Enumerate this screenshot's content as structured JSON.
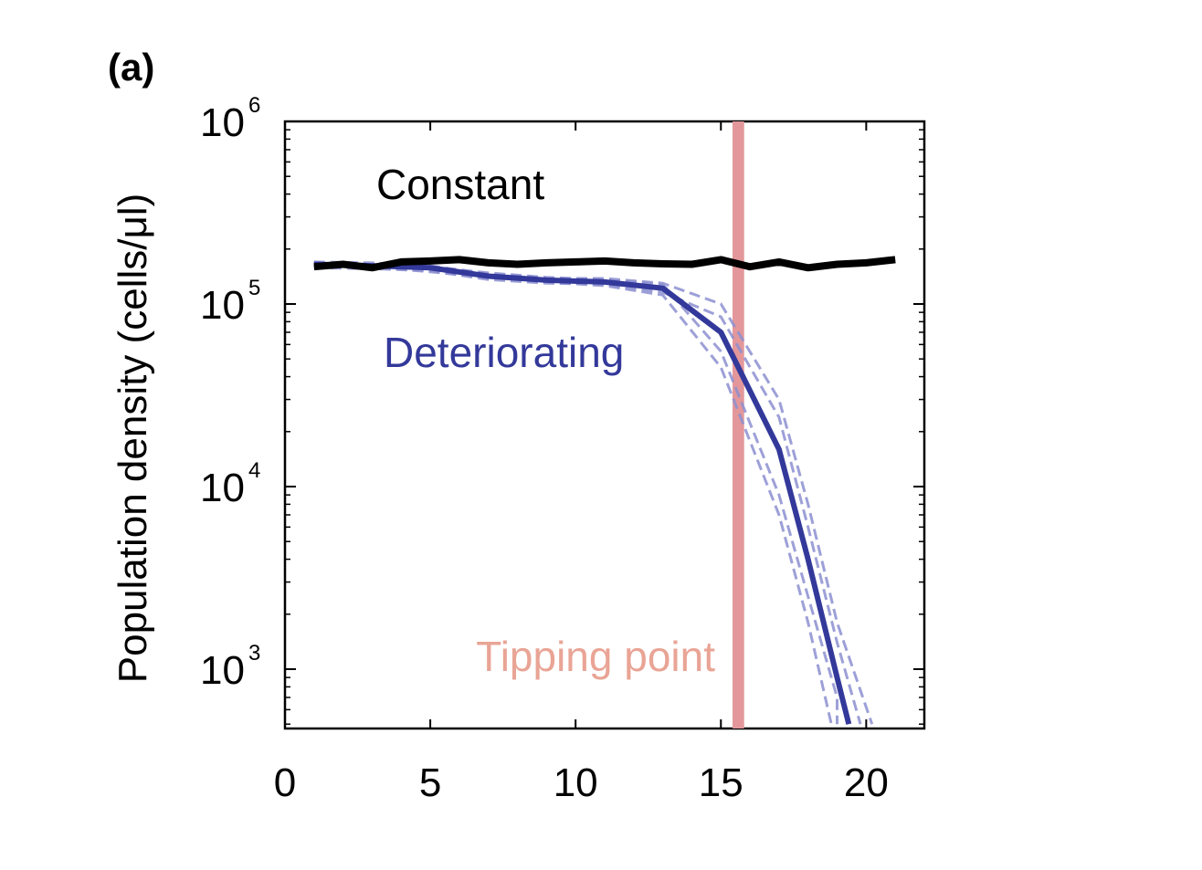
{
  "panel_label": "(a)",
  "colors": {
    "constant": "#000000",
    "deteriorating": "#33399a",
    "replicates": "#8c8fd0",
    "tipping_band": "#e3979b",
    "tipping_text": "#e9a495"
  },
  "chart_data": {
    "type": "line",
    "ylabel": "Population density (cells/μl)",
    "xlabel": "",
    "xlim": [
      0,
      22
    ],
    "ylim": [
      500,
      1000000
    ],
    "yscale": "log",
    "xticks": [
      0,
      5,
      10,
      15,
      20
    ],
    "yticks": [
      {
        "value": 1000,
        "base": "10",
        "exp": "3"
      },
      {
        "value": 10000,
        "base": "10",
        "exp": "4"
      },
      {
        "value": 100000,
        "base": "10",
        "exp": "5"
      },
      {
        "value": 1000000,
        "base": "10",
        "exp": "6"
      }
    ],
    "grid": false,
    "annotations": [
      {
        "text": "Constant",
        "series": "constant"
      },
      {
        "text": "Deteriorating",
        "series": "deteriorating"
      },
      {
        "text": "Tipping point",
        "series": "tipping"
      }
    ],
    "tipping_point": {
      "x": 15.6,
      "x_range": [
        15.4,
        15.8
      ]
    },
    "series": [
      {
        "id": "constant",
        "x": [
          1,
          2,
          3,
          4,
          5,
          6,
          7,
          8,
          9,
          10,
          11,
          12,
          13,
          14,
          15,
          16,
          17,
          18,
          19,
          20,
          21
        ],
        "y": [
          160000,
          165000,
          158000,
          170000,
          172000,
          175000,
          168000,
          165000,
          168000,
          170000,
          172000,
          168000,
          166000,
          165000,
          175000,
          160000,
          170000,
          158000,
          165000,
          168000,
          175000
        ]
      },
      {
        "id": "deteriorating",
        "x": [
          1,
          3,
          5,
          7,
          9,
          11,
          13,
          15,
          17,
          18,
          19,
          19.4
        ],
        "y": [
          165000,
          162000,
          158000,
          142000,
          135000,
          132000,
          122000,
          70000,
          16000,
          4000,
          900,
          500
        ]
      }
    ],
    "replicates": [
      {
        "x": [
          1,
          3,
          5,
          7,
          9,
          11,
          13,
          15,
          17,
          18,
          19,
          19.0
        ],
        "y": [
          170000,
          168000,
          160000,
          148000,
          140000,
          136000,
          128000,
          55000,
          9000,
          2500,
          700,
          500
        ]
      },
      {
        "x": [
          1,
          3,
          5,
          7,
          9,
          11,
          13,
          15,
          17,
          18,
          19,
          19.8
        ],
        "y": [
          158000,
          156000,
          152000,
          136000,
          130000,
          128000,
          116000,
          85000,
          24000,
          6000,
          1400,
          500
        ]
      },
      {
        "x": [
          1,
          3,
          5,
          7,
          9,
          11,
          13,
          15,
          17,
          18,
          18.8
        ],
        "y": [
          168000,
          160000,
          150000,
          140000,
          132000,
          126000,
          112000,
          45000,
          7000,
          1800,
          500
        ]
      },
      {
        "x": [
          1,
          3,
          5,
          7,
          9,
          11,
          13,
          15,
          17,
          18,
          19,
          20.2
        ],
        "y": [
          162000,
          164000,
          162000,
          146000,
          138000,
          138000,
          130000,
          100000,
          30000,
          8000,
          1800,
          500
        ]
      }
    ]
  }
}
